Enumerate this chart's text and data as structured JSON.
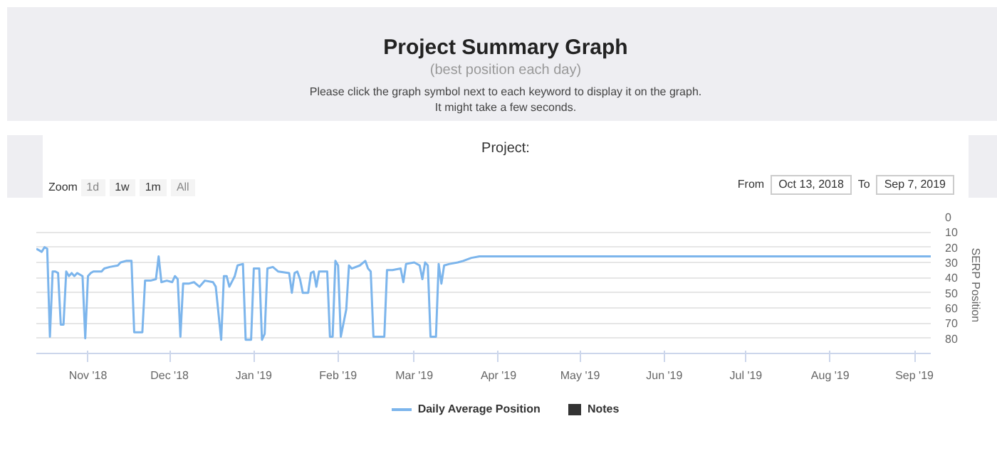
{
  "chart_data": {
    "type": "line",
    "title": "Project Summary Graph",
    "subtitle": "(best position each day)",
    "annotations": [
      "Please click the graph symbol next to each keyword to display it on the graph.",
      "It might take a few seconds.",
      "Project:",
      "Zoom",
      "1d",
      "1w",
      "1m",
      "All",
      "From",
      "Oct 13, 2018",
      "To",
      "Sep 7, 2019"
    ],
    "ylabel": "SERP Position",
    "ylim": [
      90,
      0
    ],
    "yticks": [
      0,
      10,
      20,
      30,
      40,
      50,
      60,
      70,
      80
    ],
    "grid": "y",
    "marker": "none",
    "line_style": "solid",
    "legend": "bottom",
    "xlim": [
      "2018-10-13",
      "2019-09-07"
    ],
    "xticks": [
      {
        "value": "2018-11-01",
        "label": "Nov '18"
      },
      {
        "value": "2018-12-01",
        "label": "Dec '18"
      },
      {
        "value": "2019-01-01",
        "label": "Jan '19"
      },
      {
        "value": "2019-02-01",
        "label": "Feb '19"
      },
      {
        "value": "2019-03-01",
        "label": "Mar '19"
      },
      {
        "value": "2019-04-01",
        "label": "Apr '19"
      },
      {
        "value": "2019-05-01",
        "label": "May '19"
      },
      {
        "value": "2019-06-01",
        "label": "Jun '19"
      },
      {
        "value": "2019-07-01",
        "label": "Jul '19"
      },
      {
        "value": "2019-08-01",
        "label": "Aug '19"
      },
      {
        "value": "2019-09-01",
        "label": "Sep '19"
      }
    ],
    "x": [
      "2018-10-13",
      "2018-10-14",
      "2018-10-15",
      "2018-10-16",
      "2018-10-17",
      "2018-10-18",
      "2018-10-19",
      "2018-10-20",
      "2018-10-21",
      "2018-10-22",
      "2018-10-23",
      "2018-10-24",
      "2018-10-25",
      "2018-10-26",
      "2018-10-27",
      "2018-10-28",
      "2018-10-30",
      "2018-10-31",
      "2018-11-01",
      "2018-11-02",
      "2018-11-03",
      "2018-11-06",
      "2018-11-07",
      "2018-11-09",
      "2018-11-12",
      "2018-11-13",
      "2018-11-15",
      "2018-11-17",
      "2018-11-18",
      "2018-11-20",
      "2018-11-21",
      "2018-11-22",
      "2018-11-24",
      "2018-11-26",
      "2018-11-27",
      "2018-11-28",
      "2018-11-30",
      "2018-12-02",
      "2018-12-03",
      "2018-12-04",
      "2018-12-05",
      "2018-12-06",
      "2018-12-08",
      "2018-12-10",
      "2018-12-12",
      "2018-12-14",
      "2018-12-17",
      "2018-12-18",
      "2018-12-20",
      "2018-12-21",
      "2018-12-22",
      "2018-12-23",
      "2018-12-25",
      "2018-12-26",
      "2018-12-28",
      "2018-12-29",
      "2018-12-31",
      "2019-01-01",
      "2019-01-03",
      "2019-01-04",
      "2019-01-05",
      "2019-01-06",
      "2019-01-08",
      "2019-01-10",
      "2019-01-14",
      "2019-01-15",
      "2019-01-16",
      "2019-01-17",
      "2019-01-18",
      "2019-01-19",
      "2019-01-21",
      "2019-01-22",
      "2019-01-23",
      "2019-01-24",
      "2019-01-25",
      "2019-01-28",
      "2019-01-29",
      "2019-01-30",
      "2019-01-31",
      "2019-02-01",
      "2019-02-02",
      "2019-02-04",
      "2019-02-05",
      "2019-02-06",
      "2019-02-09",
      "2019-02-11",
      "2019-02-12",
      "2019-02-13",
      "2019-02-14",
      "2019-02-18",
      "2019-02-19",
      "2019-02-21",
      "2019-02-24",
      "2019-02-25",
      "2019-02-26",
      "2019-03-01",
      "2019-03-03",
      "2019-03-04",
      "2019-03-05",
      "2019-03-06",
      "2019-03-07",
      "2019-03-09",
      "2019-03-10",
      "2019-03-11",
      "2019-03-12",
      "2019-03-14",
      "2019-03-17",
      "2019-03-19",
      "2019-03-22",
      "2019-03-25",
      "2019-09-07"
    ],
    "series": [
      {
        "name": "Daily Average Position",
        "color": "#7cb5ec",
        "values": [
          21,
          22,
          23,
          20,
          21,
          79,
          36,
          36,
          37,
          71,
          71,
          36,
          39,
          37,
          39,
          37,
          39,
          80,
          39,
          37,
          36,
          36,
          34,
          33,
          32,
          30,
          29,
          29,
          76,
          76,
          76,
          42,
          42,
          41,
          26,
          43,
          42,
          43,
          39,
          41,
          79,
          44,
          44,
          43,
          46,
          42,
          43,
          46,
          81,
          39,
          39,
          46,
          39,
          32,
          31,
          81,
          81,
          34,
          34,
          81,
          77,
          34,
          33,
          36,
          37,
          50,
          37,
          36,
          41,
          50,
          50,
          37,
          36,
          46,
          36,
          36,
          79,
          79,
          29,
          32,
          79,
          61,
          32,
          34,
          32,
          29,
          34,
          36,
          79,
          79,
          35,
          35,
          34,
          43,
          31,
          30,
          32,
          41,
          30,
          32,
          79,
          79,
          31,
          44,
          32,
          31,
          30,
          29,
          27,
          26,
          26
        ]
      },
      {
        "name": "Notes",
        "color": "#333333",
        "type": "bar",
        "values": [
          null,
          null,
          null,
          null,
          null,
          null,
          null,
          null,
          null,
          null,
          null,
          null,
          null,
          null,
          null,
          null,
          null,
          null,
          null,
          null,
          null,
          null,
          null,
          null,
          null,
          null,
          null,
          null,
          null,
          null,
          null,
          null,
          null,
          null,
          null,
          null,
          null,
          null,
          null,
          null,
          null,
          null,
          null,
          null,
          null,
          null,
          null,
          null,
          null,
          null,
          null,
          null,
          null,
          null,
          null,
          null,
          null,
          null,
          null,
          null,
          null,
          null,
          null,
          null,
          null,
          null,
          null,
          null,
          null,
          null,
          null,
          null,
          null,
          null,
          null,
          null,
          null,
          null,
          null,
          null,
          null,
          null,
          null,
          null,
          null,
          null,
          null,
          null,
          null,
          null,
          null,
          null,
          null,
          null,
          null,
          null,
          null,
          null,
          null,
          null,
          null,
          null,
          null,
          null,
          null,
          null,
          null,
          null,
          null,
          null,
          null
        ]
      }
    ]
  }
}
